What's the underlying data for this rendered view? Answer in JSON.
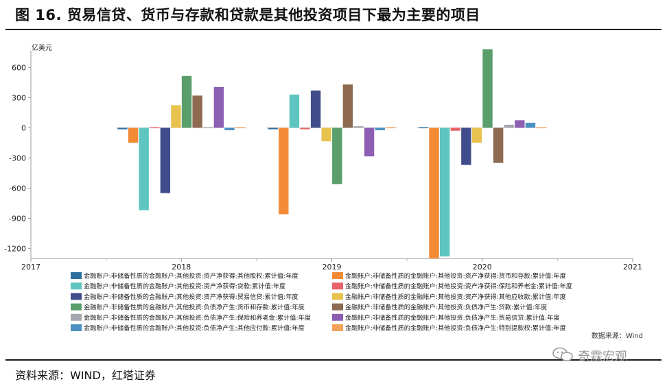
{
  "figure": {
    "title": "图 16. 贸易信贷、货币与存款和贷款是其他投资项目下最为主要的项目",
    "source": "资料来源：WIND，红塔证券",
    "watermark": "奇霖宏观"
  },
  "chart_data": {
    "type": "bar",
    "unit_label": "亿美元",
    "credit": "数据来源：Wind",
    "x_ticks": [
      "2017",
      "2018",
      "2019",
      "2020",
      "2021"
    ],
    "categories": [
      "2018",
      "2019",
      "2020"
    ],
    "ylim": [
      -1300,
      800
    ],
    "y_ticks": [
      600,
      300,
      0,
      -300,
      -600,
      -900,
      -1200
    ],
    "grid": false,
    "legend_position": "bottom",
    "series": [
      {
        "name": "金融账户:非储备性质的金融账户:其他投资:资产净获得:其他股权:累计值:年度",
        "color": "#2e6f9e",
        "values": [
          -15,
          -15,
          -5
        ]
      },
      {
        "name": "金融账户:非储备性质的金融账户:其他投资:资产净获得:货币和存款:累计值:年度",
        "color": "#f28a36",
        "values": [
          -150,
          -860,
          -1300
        ]
      },
      {
        "name": "金融账户:非储备性质的金融账户:其他投资:资产净获得:贷款:累计值:年度",
        "color": "#5ec5c0",
        "values": [
          -820,
          330,
          -1280
        ]
      },
      {
        "name": "金融账户:非储备性质的金融账户:其他投资:资产净获得:保险和养老金:累计值:年度",
        "color": "#e8636a",
        "values": [
          0,
          -15,
          -30
        ]
      },
      {
        "name": "金融账户:非储备性质的金融账户:其他投资:资产净获得:贸易信贷:累计值:年度",
        "color": "#3f4d8c",
        "values": [
          -650,
          370,
          -370
        ]
      },
      {
        "name": "金融账户:非储备性质的金融账户:其他投资:资产净获得:其他应收款:累计值:年度",
        "color": "#e8c24e",
        "values": [
          225,
          -135,
          -150
        ]
      },
      {
        "name": "金融账户:非储备性质的金融账户:其他投资:负债净产生:货币和存款:累计值:年度",
        "color": "#5a9e6b",
        "values": [
          515,
          -560,
          780
        ]
      },
      {
        "name": "金融账户:非储备性质的金融账户:其他投资:负债净产生:贷款:累计值:年度",
        "color": "#8d6a50",
        "values": [
          320,
          430,
          -350
        ]
      },
      {
        "name": "金融账户:非储备性质的金融账户:其他投资:负债净产生:保险和养老金:累计值:年度",
        "color": "#a4a7ad",
        "values": [
          0,
          15,
          30
        ]
      },
      {
        "name": "金融账户:非储备性质的金融账户:其他投资:负债净产生:贸易信贷:累计值:年度",
        "color": "#8d5fb3",
        "values": [
          405,
          -285,
          75
        ]
      },
      {
        "name": "金融账户:非储备性质的金融账户:其他投资:负债净产生:其他应付款:累计值:年度",
        "color": "#4a90c0",
        "values": [
          -25,
          -25,
          50
        ]
      },
      {
        "name": "金融账户:非储备性质的金融账户:其他投资:负债净产生:特别提款权:累计值:年度",
        "color": "#f4a259",
        "values": [
          0,
          0,
          0
        ]
      }
    ]
  }
}
